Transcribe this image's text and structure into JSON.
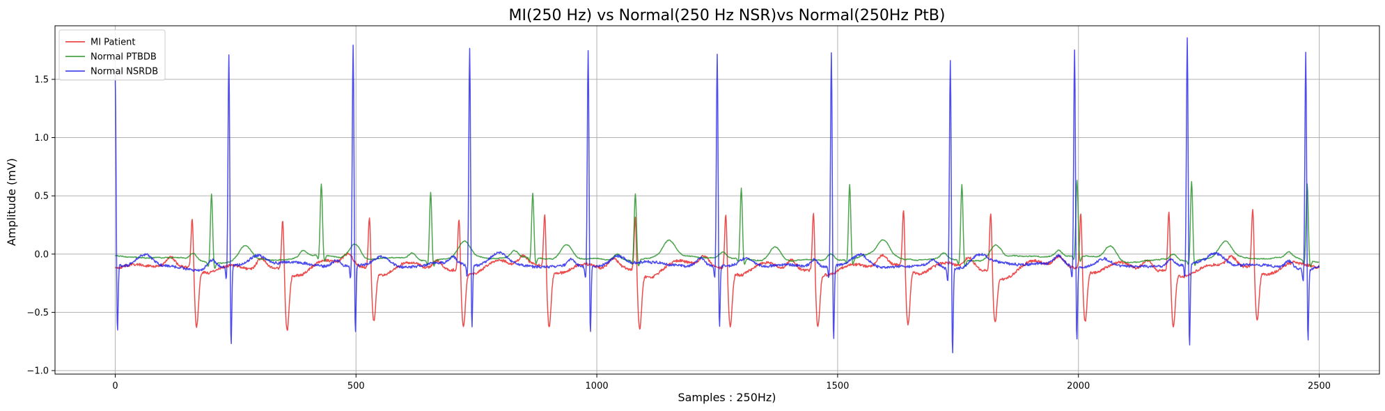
{
  "chart_data": {
    "type": "line",
    "title": "MI(250 Hz) vs Normal(250 Hz NSR)vs Normal(250Hz PtB)",
    "xlabel": "Samples : 250Hz)",
    "ylabel": "Amplitude (mV)",
    "xlim": [
      -125,
      2625
    ],
    "ylim": [
      -1.03,
      1.96
    ],
    "xticks": [
      0,
      500,
      1000,
      1500,
      2000,
      2500
    ],
    "yticks": [
      -1.0,
      -0.5,
      0.0,
      0.5,
      1.0,
      1.5
    ],
    "xtick_labels": [
      "0",
      "500",
      "1000",
      "1500",
      "2000",
      "2500"
    ],
    "ytick_labels": [
      "−1.0",
      "−0.5",
      "0.0",
      "0.5",
      "1.0",
      "1.5"
    ],
    "grid": true,
    "legend_position": "top-left",
    "series": [
      {
        "name": "MI Patient",
        "color": "#e8191a",
        "baseline": -0.12,
        "beats": [
          {
            "x": 160,
            "peak": 0.34,
            "trough": -0.62
          },
          {
            "x": 348,
            "peak": 0.34,
            "trough": -0.62
          },
          {
            "x": 528,
            "peak": 0.36,
            "trough": -0.55
          },
          {
            "x": 714,
            "peak": 0.36,
            "trough": -0.6
          },
          {
            "x": 892,
            "peak": 0.37,
            "trough": -0.62
          },
          {
            "x": 1080,
            "peak": 0.37,
            "trough": -0.6
          },
          {
            "x": 1268,
            "peak": 0.38,
            "trough": -0.6
          },
          {
            "x": 1450,
            "peak": 0.42,
            "trough": -0.58
          },
          {
            "x": 1637,
            "peak": 0.39,
            "trough": -0.6
          },
          {
            "x": 1818,
            "peak": 0.43,
            "trough": -0.52
          },
          {
            "x": 2005,
            "peak": 0.38,
            "trough": -0.56
          },
          {
            "x": 2188,
            "peak": 0.42,
            "trough": -0.58
          },
          {
            "x": 2362,
            "peak": 0.41,
            "trough": -0.55
          }
        ]
      },
      {
        "name": "Normal PTBDB",
        "color": "#1a8c1a",
        "baseline": -0.04,
        "beats": [
          {
            "x": 200,
            "peak": 0.55
          },
          {
            "x": 428,
            "peak": 0.57
          },
          {
            "x": 655,
            "peak": 0.55
          },
          {
            "x": 867,
            "peak": 0.51
          },
          {
            "x": 1080,
            "peak": 0.53
          },
          {
            "x": 1300,
            "peak": 0.56
          },
          {
            "x": 1525,
            "peak": 0.6
          },
          {
            "x": 1758,
            "peak": 0.61
          },
          {
            "x": 1997,
            "peak": 0.61
          },
          {
            "x": 2235,
            "peak": 0.64
          },
          {
            "x": 2475,
            "peak": 0.62
          }
        ]
      },
      {
        "name": "Normal NSRDB",
        "color": "#1a1aeb",
        "baseline": -0.1,
        "beats": [
          {
            "x": 0,
            "peak": 1.55,
            "trough": -0.72
          },
          {
            "x": 236,
            "peak": 1.72,
            "trough": -0.83
          },
          {
            "x": 494,
            "peak": 1.8,
            "trough": -0.72
          },
          {
            "x": 736,
            "peak": 1.77,
            "trough": -0.68
          },
          {
            "x": 982,
            "peak": 1.76,
            "trough": -0.73
          },
          {
            "x": 1250,
            "peak": 1.73,
            "trough": -0.68
          },
          {
            "x": 1487,
            "peak": 1.74,
            "trough": -0.79
          },
          {
            "x": 1734,
            "peak": 1.7,
            "trough": -0.89
          },
          {
            "x": 1992,
            "peak": 1.77,
            "trough": -0.79
          },
          {
            "x": 2226,
            "peak": 1.84,
            "trough": -0.87
          },
          {
            "x": 2472,
            "peak": 1.76,
            "trough": -0.77
          }
        ]
      }
    ]
  }
}
